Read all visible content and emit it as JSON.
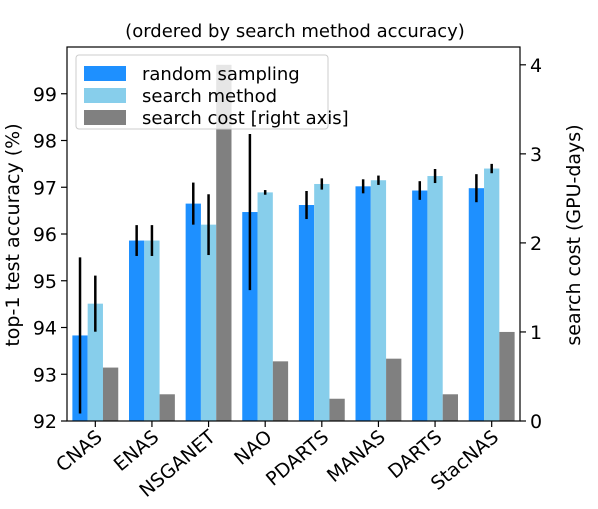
{
  "chart_data": {
    "type": "bar",
    "title": "(ordered by search method accuracy)",
    "categories": [
      "CNAS",
      "ENAS",
      "NSGANET",
      "NAO",
      "PDARTS",
      "MANAS",
      "DARTS",
      "StacNAS"
    ],
    "ylabel": "top-1 test accuracy (%)",
    "y2label": "search cost (GPU-days)",
    "ylim": [
      92,
      100
    ],
    "y2lim": [
      0,
      4.2
    ],
    "yticks": [
      92,
      93,
      94,
      95,
      96,
      97,
      98,
      99
    ],
    "y2ticks": [
      0,
      1,
      2,
      3,
      4
    ],
    "legend_position": "top-left",
    "grid": false,
    "series": [
      {
        "name": "random sampling",
        "axis": "left",
        "color": "#1e90ff",
        "values": [
          93.83,
          95.86,
          96.65,
          96.47,
          96.62,
          97.02,
          96.93,
          96.98
        ],
        "errors": [
          1.67,
          0.33,
          0.45,
          1.67,
          0.3,
          0.15,
          0.2,
          0.3
        ]
      },
      {
        "name": "search method",
        "axis": "left",
        "color": "#87ceeb",
        "values": [
          94.51,
          95.86,
          96.2,
          96.89,
          97.07,
          97.15,
          97.24,
          97.4
        ],
        "errors": [
          0.6,
          0.33,
          0.65,
          0.05,
          0.12,
          0.1,
          0.15,
          0.1
        ]
      },
      {
        "name": "search cost [right axis]",
        "axis": "right",
        "color": "#808080",
        "values": [
          0.6,
          0.3,
          4.0,
          0.67,
          0.25,
          0.7,
          0.3,
          1.0
        ]
      }
    ]
  }
}
